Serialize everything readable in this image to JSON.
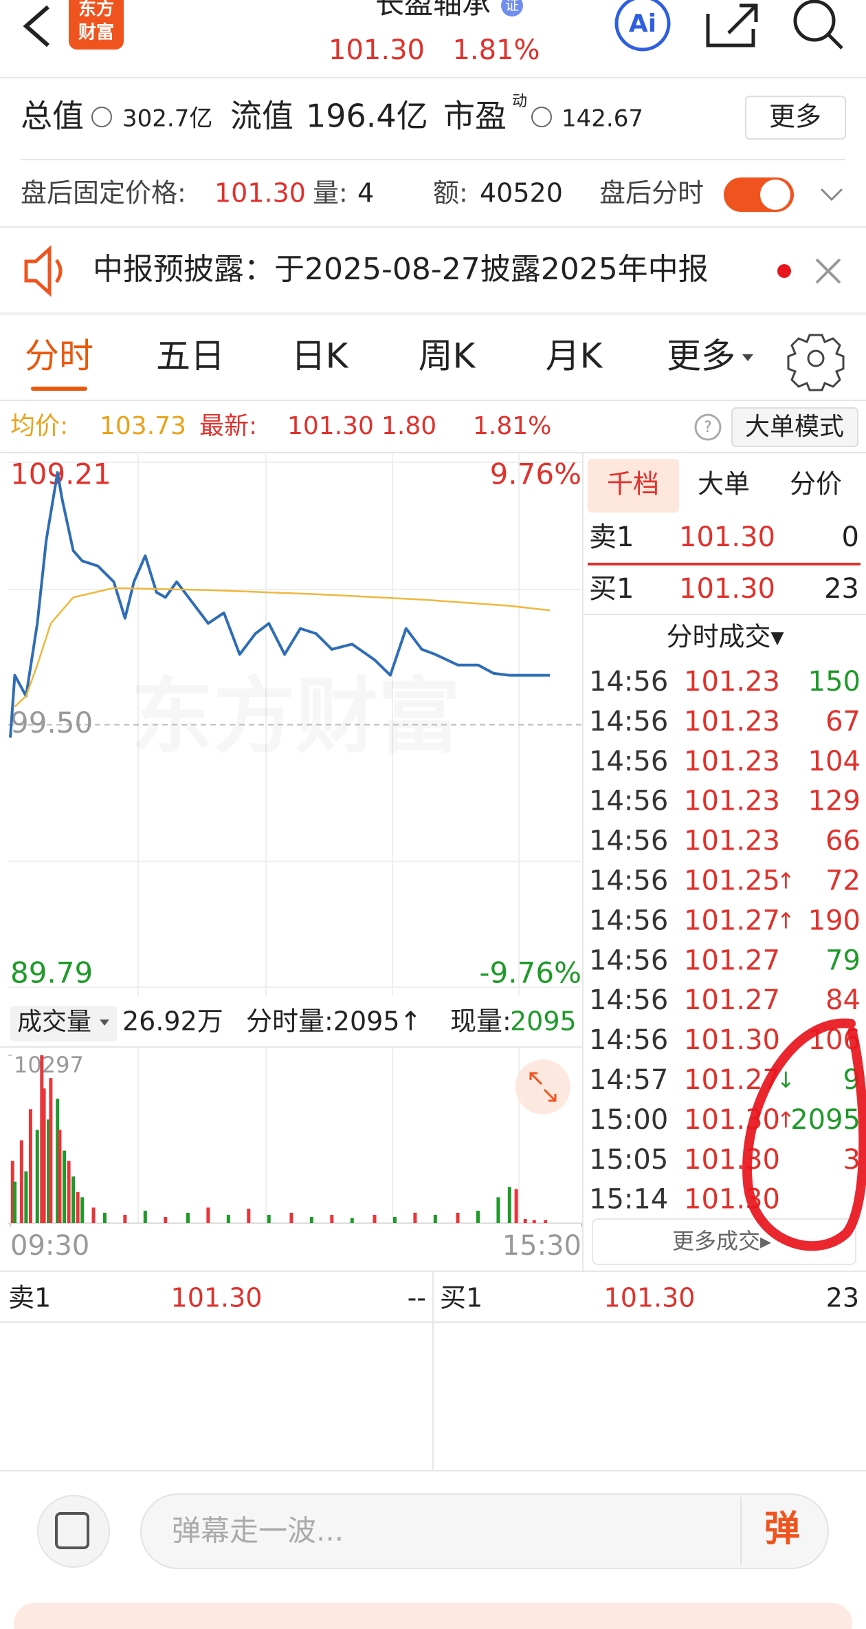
{
  "header": {
    "logo_top": "东方",
    "logo_bottom": "财富",
    "title": "长盈轴承",
    "badge": "证",
    "price": "101.30",
    "change_pct": "1.81%",
    "ai": "Ai"
  },
  "stats": {
    "total_label": "总值",
    "total": "302.7亿",
    "float_label": "流值",
    "float": "196.4亿",
    "pe_label": "市盈",
    "pe_sup": "动",
    "pe": "142.67",
    "more": "更多"
  },
  "after_hours": {
    "label": "盘后固定价格:",
    "price": "101.30",
    "vol_label": "量:",
    "vol": "4",
    "amt_label": "额:",
    "amt": "40520",
    "toggle_label": "盘后分时"
  },
  "notice": "中报预披露：于2025-08-27披露2025年中报",
  "tabs": [
    "分时",
    "五日",
    "日K",
    "周K",
    "月K",
    "更多"
  ],
  "summary": {
    "avg_label": "均价:",
    "avg": "103.73",
    "latest_label": "最新:",
    "latest": "101.30",
    "change": "1.80",
    "change_pct": "1.81%",
    "mode": "大单模式"
  },
  "chart_data": [
    {
      "type": "line",
      "ylim": [
        89.79,
        109.21
      ],
      "yticks": [
        109.21,
        {
          "value": 99.5,
          "label": "99.50"
        },
        89.79
      ],
      "y2lim": [
        -9.76,
        9.76
      ],
      "y2ticks": [
        {
          "value": 9.76,
          "label": "9.76%"
        },
        {
          "value": -9.76,
          "label": "-9.76%"
        }
      ],
      "xlim": [
        0,
        254
      ],
      "grid": true,
      "watermark": "东方财富",
      "series": [
        {
          "color": "#2f6db5",
          "x": [
            0,
            2,
            7,
            12,
            16,
            21,
            23,
            28,
            32,
            39,
            46,
            51,
            55,
            60,
            65,
            69,
            74,
            81,
            88,
            95,
            102,
            109,
            115,
            122,
            129,
            136,
            143,
            152,
            162,
            169,
            176,
            183,
            189,
            199,
            208,
            215,
            222,
            240
          ],
          "values": [
            99.02,
            101.33,
            100.56,
            103.25,
            106.33,
            108.83,
            107.87,
            105.94,
            105.56,
            105.37,
            104.79,
            103.44,
            104.79,
            105.75,
            104.4,
            104.21,
            104.79,
            104.02,
            103.25,
            103.64,
            102.1,
            102.87,
            103.25,
            102.1,
            103.06,
            102.87,
            102.29,
            102.48,
            101.9,
            101.33,
            103.06,
            102.29,
            102.1,
            101.71,
            101.71,
            101.4,
            101.33,
            101.33
          ]
        },
        {
          "color": "#f0b73c",
          "x": [
            2,
            7,
            12,
            18,
            28,
            46,
            88,
            136,
            183,
            222,
            240
          ],
          "values": [
            100.17,
            100.56,
            101.71,
            103.25,
            104.21,
            104.56,
            104.48,
            104.33,
            104.13,
            103.9,
            103.73
          ]
        }
      ]
    },
    {
      "type": "bar",
      "label": "成交量",
      "total": "26.92万",
      "minute_volume": "分时量:2095↑",
      "current_label": "现量:",
      "current": "2095",
      "ylim": [
        0,
        10297
      ],
      "yticks": [
        10297
      ],
      "xlim": [
        0,
        254
      ],
      "xticks": [
        {
          "value": 0,
          "label": "09:30"
        },
        {
          "value": 254,
          "label": "15:30"
        }
      ],
      "x": [
        1,
        2,
        5,
        7,
        9,
        12,
        14,
        15,
        17,
        18,
        21,
        22,
        24,
        26,
        28,
        30,
        32,
        37,
        42,
        51,
        60,
        69,
        79,
        88,
        97,
        106,
        115,
        125,
        134,
        143,
        152,
        162,
        171,
        180,
        189,
        199,
        208,
        217,
        222,
        225,
        229,
        233,
        238
      ],
      "values": [
        3815,
        2543,
        5085,
        3178,
        6992,
        5720,
        10297,
        8263,
        6356,
        8898,
        7627,
        5720,
        4449,
        3814,
        2860,
        1907,
        1589,
        953,
        636,
        508,
        763,
        381,
        636,
        953,
        508,
        890,
        508,
        636,
        381,
        508,
        318,
        508,
        381,
        636,
        508,
        636,
        763,
        1589,
        2225,
        2095,
        254,
        191,
        191
      ],
      "colors": [
        "#e8353a",
        "#1f9a2a",
        "#e8353a",
        "#1f9a2a",
        "#e8353a",
        "#1f9a2a",
        "#e8353a",
        "#e8353a",
        "#1f9a2a",
        "#e8353a",
        "#1f9a2a",
        "#e8353a",
        "#1f9a2a",
        "#e8353a",
        "#1f9a2a",
        "#e8353a",
        "#1f9a2a",
        "#e8353a",
        "#1f9a2a",
        "#e8353a",
        "#1f9a2a",
        "#e8353a",
        "#1f9a2a",
        "#e8353a",
        "#1f9a2a",
        "#e8353a",
        "#1f9a2a",
        "#e8353a",
        "#1f9a2a",
        "#e8353a",
        "#1f9a2a",
        "#e8353a",
        "#1f9a2a",
        "#e8353a",
        "#1f9a2a",
        "#e8353a",
        "#1f9a2a",
        "#1f9a2a",
        "#1f9a2a",
        "#e8353a",
        "#e8353a",
        "#e8353a",
        "#e8353a"
      ]
    }
  ],
  "trade_panel": {
    "tabs": [
      "千档",
      "大单",
      "分价"
    ],
    "ask": {
      "label": "卖1",
      "price": "101.30",
      "vol": "0"
    },
    "bid": {
      "label": "买1",
      "price": "101.30",
      "vol": "23"
    },
    "ticks_title": "分时成交▾",
    "rows": [
      {
        "time": "14:56",
        "price": "101.23",
        "volume": "150",
        "color": "#1f9a2a"
      },
      {
        "time": "14:56",
        "price": "101.23",
        "volume": "67",
        "color": "#e0312c"
      },
      {
        "time": "14:56",
        "price": "101.23",
        "volume": "104",
        "color": "#e0312c"
      },
      {
        "time": "14:56",
        "price": "101.23",
        "volume": "129",
        "color": "#e0312c"
      },
      {
        "time": "14:56",
        "price": "101.23",
        "volume": "66",
        "color": "#e0312c"
      },
      {
        "time": "14:56",
        "price": "101.25",
        "arrow": "↑",
        "volume": "72",
        "color": "#e0312c"
      },
      {
        "time": "14:56",
        "price": "101.27",
        "arrow": "↑",
        "volume": "190",
        "color": "#e0312c"
      },
      {
        "time": "14:56",
        "price": "101.27",
        "volume": "79",
        "color": "#1f9a2a"
      },
      {
        "time": "14:56",
        "price": "101.27",
        "volume": "84",
        "color": "#e0312c"
      },
      {
        "time": "14:56",
        "price": "101.30",
        "volume": "106",
        "color": "#e0312c"
      },
      {
        "time": "14:57",
        "price": "101.27",
        "arrow": "↓",
        "volume": "9",
        "color": "#1f9a2a"
      },
      {
        "time": "15:00",
        "price": "101.30",
        "arrow": "↑",
        "volume": "2095",
        "color": "#1f9a2a"
      },
      {
        "time": "15:05",
        "price": "101.30",
        "volume": "3",
        "color": "#e0312c"
      },
      {
        "time": "15:14",
        "price": "101.30"
      }
    ],
    "more": "更多成交▸"
  },
  "bottom_quote": {
    "sell_label": "卖1",
    "sell_price": "101.30",
    "sell_vol": "--",
    "buy_label": "买1",
    "buy_price": "101.30",
    "buy_vol": "23"
  },
  "input": {
    "placeholder": "弹幕走一波...",
    "button": "弹"
  }
}
